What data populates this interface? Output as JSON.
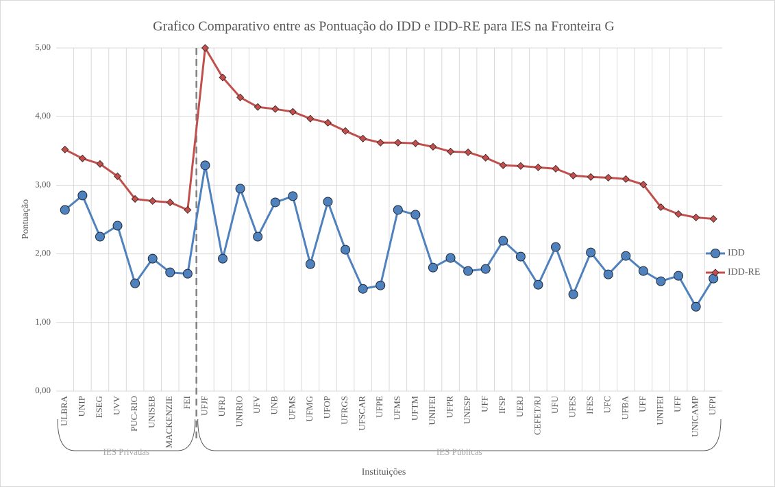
{
  "chart_data": {
    "type": "line",
    "title": "Grafico Comparativo entre as Pontuação do IDD e IDD-RE para IES na Fronteira G",
    "y_label": "Pontuação",
    "x_label": "Instituições",
    "groups": [
      {
        "name": "IES Privadas",
        "categories": [
          "ULBRA",
          "UNIP",
          "ESEG",
          "UVV",
          "PUC-RIO",
          "UNISEB",
          "MACKENZIE",
          "FEI"
        ]
      },
      {
        "name": "IES Públicas",
        "categories": [
          "UFJF",
          "UFRJ",
          "UNIRIO",
          "UFV",
          "UNB",
          "UFMS",
          "UFMG",
          "UFOP",
          "UFRGS",
          "UFSCAR",
          "UFPE",
          "UFMS",
          "UFTM",
          "UNIFEI",
          "UFPR",
          "UNESP",
          "UFF",
          "IFSP",
          "UERJ",
          "CEFET/RJ",
          "UFU",
          "UFES",
          "IFES",
          "UFC",
          "UFBA",
          "UFF",
          "UNIFEI",
          "UFF",
          "UNICAMP",
          "UFPI"
        ]
      }
    ],
    "series": [
      {
        "name": "IDD",
        "color": "#4f81bd",
        "marker": "circle",
        "values": [
          2.64,
          2.85,
          2.25,
          2.41,
          1.57,
          1.93,
          1.73,
          1.71,
          3.29,
          1.93,
          2.95,
          2.25,
          2.75,
          2.84,
          1.85,
          2.76,
          2.06,
          1.49,
          1.54,
          2.64,
          2.57,
          1.8,
          1.94,
          1.75,
          1.78,
          2.19,
          1.96,
          1.55,
          2.1,
          1.41,
          2.02,
          1.7,
          1.97,
          1.75,
          1.6,
          1.68,
          1.23,
          1.64
        ]
      },
      {
        "name": "IDD-RE",
        "color": "#c0504d",
        "marker": "diamond",
        "values": [
          3.52,
          3.39,
          3.31,
          3.13,
          2.8,
          2.77,
          2.75,
          2.64,
          5.0,
          4.57,
          4.28,
          4.14,
          4.11,
          4.07,
          3.97,
          3.91,
          3.79,
          3.68,
          3.62,
          3.62,
          3.61,
          3.56,
          3.49,
          3.48,
          3.4,
          3.29,
          3.28,
          3.26,
          3.24,
          3.14,
          3.12,
          3.11,
          3.09,
          3.01,
          2.68,
          2.58,
          2.53,
          2.51
        ]
      }
    ],
    "ylim": [
      0,
      5
    ],
    "yticks": [
      {
        "value": 0,
        "label": "0,00"
      },
      {
        "value": 1,
        "label": "1,00"
      },
      {
        "value": 2,
        "label": "2,00"
      },
      {
        "value": 3,
        "label": "3,00"
      },
      {
        "value": 4,
        "label": "4,00"
      },
      {
        "value": 5,
        "label": "5,00"
      }
    ],
    "grid": true,
    "legend": "right"
  }
}
